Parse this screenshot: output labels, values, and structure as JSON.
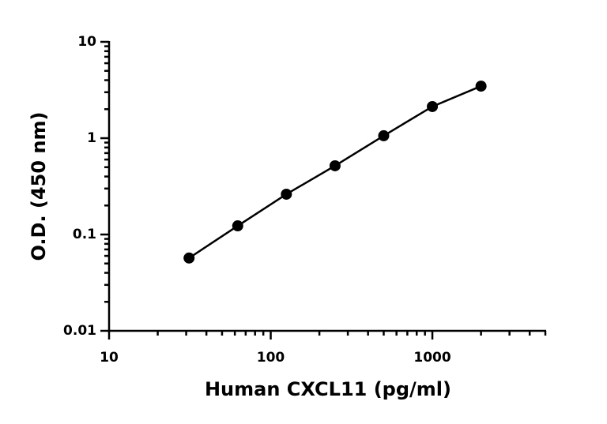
{
  "chart_data": {
    "type": "scatter",
    "x_label": "Human CXCL11 (pg/ml)",
    "y_label": "O.D. (450 nm)",
    "x_scale": "log",
    "y_scale": "log",
    "xlim": [
      10,
      5000
    ],
    "ylim": [
      0.01,
      10
    ],
    "xticks": [
      10,
      100,
      1000
    ],
    "yticks": [
      0.01,
      0.1,
      1,
      10
    ],
    "minor_ticks": true,
    "color": "#000000",
    "connect": true,
    "x": [
      31.25,
      62.5,
      125,
      250,
      500,
      1000,
      2000
    ],
    "values": [
      0.057,
      0.123,
      0.262,
      0.517,
      1.06,
      2.13,
      3.47
    ]
  }
}
